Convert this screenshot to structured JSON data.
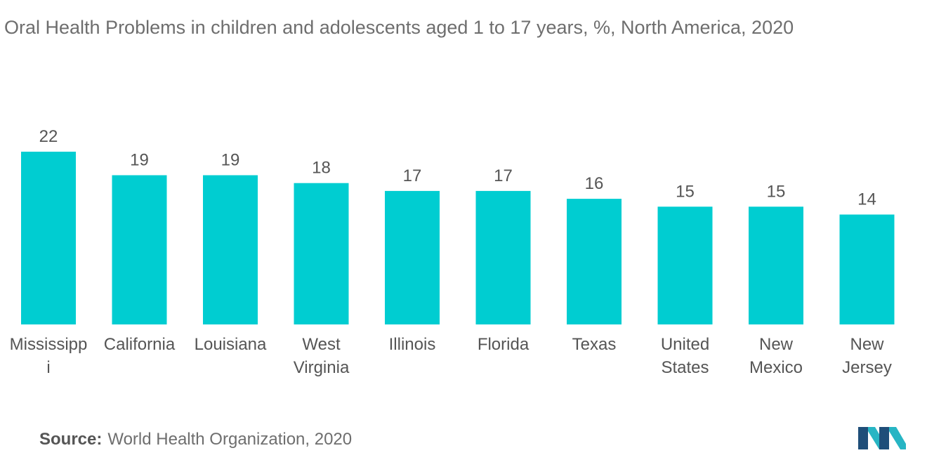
{
  "title": "Oral Health Problems in children and adolescents aged 1 to 17 years, %, North America, 2020",
  "source": {
    "label": "Source:",
    "text": "World Health Organization, 2020"
  },
  "colors": {
    "bar": "#00CDD1",
    "text": "#555555",
    "logo_dark": "#1f4e79",
    "logo_teal": "#27b5c4"
  },
  "chart_data": {
    "type": "bar",
    "title": "Oral Health Problems in children and adolescents aged 1 to 17 years, %, North America, 2020",
    "categories": [
      [
        "Mississipp",
        "i"
      ],
      [
        "California"
      ],
      [
        "Louisiana"
      ],
      [
        "West",
        "Virginia"
      ],
      [
        "Illinois"
      ],
      [
        "Florida"
      ],
      [
        "Texas"
      ],
      [
        "United",
        "States"
      ],
      [
        "New",
        "Mexico"
      ],
      [
        "New",
        "Jersey"
      ]
    ],
    "values": [
      22,
      19,
      19,
      18,
      17,
      17,
      16,
      15,
      15,
      14
    ],
    "ylim": [
      0,
      22
    ],
    "grid": false,
    "legend": "none",
    "data_labels": true
  }
}
